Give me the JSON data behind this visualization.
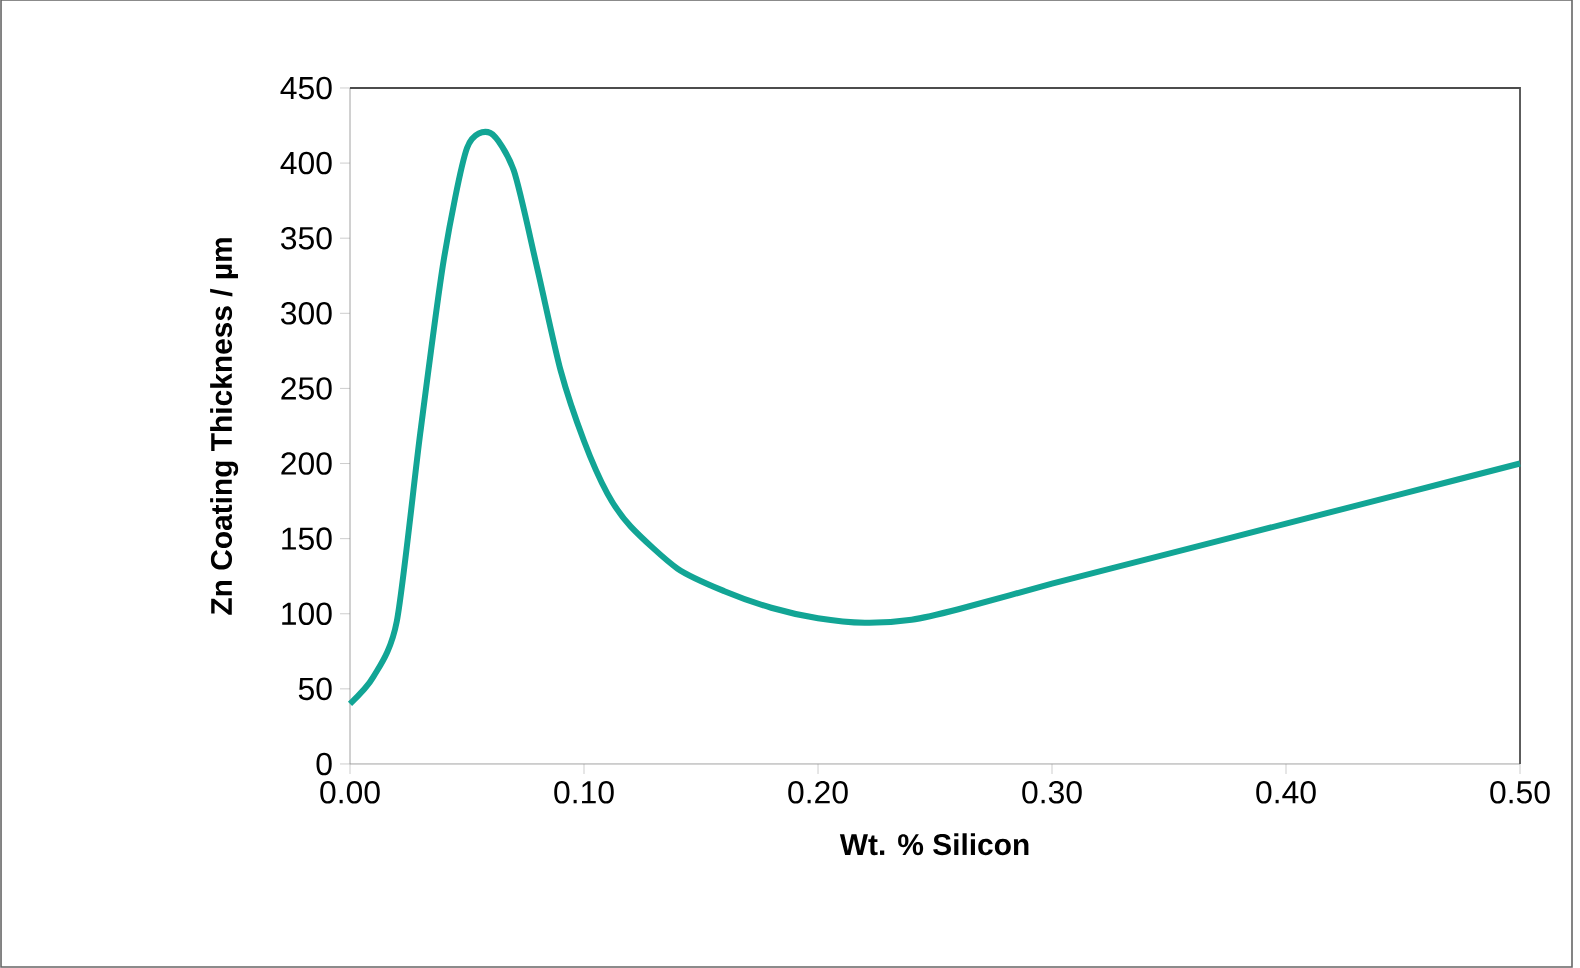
{
  "chart_data": {
    "type": "line",
    "xlabel": "Wt. % Silicon",
    "ylabel": "Zn Coating Thickness / µm",
    "x": [
      0.0,
      0.01,
      0.02,
      0.03,
      0.04,
      0.05,
      0.06,
      0.07,
      0.08,
      0.09,
      0.1,
      0.11,
      0.12,
      0.14,
      0.16,
      0.18,
      0.2,
      0.22,
      0.24,
      0.26,
      0.3,
      0.35,
      0.4,
      0.45,
      0.5
    ],
    "series": [
      {
        "color": "#12a595",
        "values": [
          40,
          58,
          95,
          220,
          335,
          410,
          420,
          395,
          330,
          262,
          215,
          180,
          158,
          130,
          115,
          104,
          97,
          94,
          96,
          103,
          120,
          140,
          160,
          180,
          200
        ]
      }
    ],
    "xlim": [
      0,
      0.5
    ],
    "ylim": [
      0,
      450
    ],
    "xticks": [
      {
        "value": 0,
        "label": "0.00"
      },
      {
        "value": 0.1,
        "label": "0.10"
      },
      {
        "value": 0.2,
        "label": "0.20"
      },
      {
        "value": 0.3,
        "label": "0.30"
      },
      {
        "value": 0.4,
        "label": "0.40"
      },
      {
        "value": 0.5,
        "label": "0.50"
      }
    ],
    "yticks": [
      0,
      50,
      100,
      150,
      200,
      250,
      300,
      350,
      400,
      450
    ],
    "marker": "none",
    "line_style": "solid"
  }
}
